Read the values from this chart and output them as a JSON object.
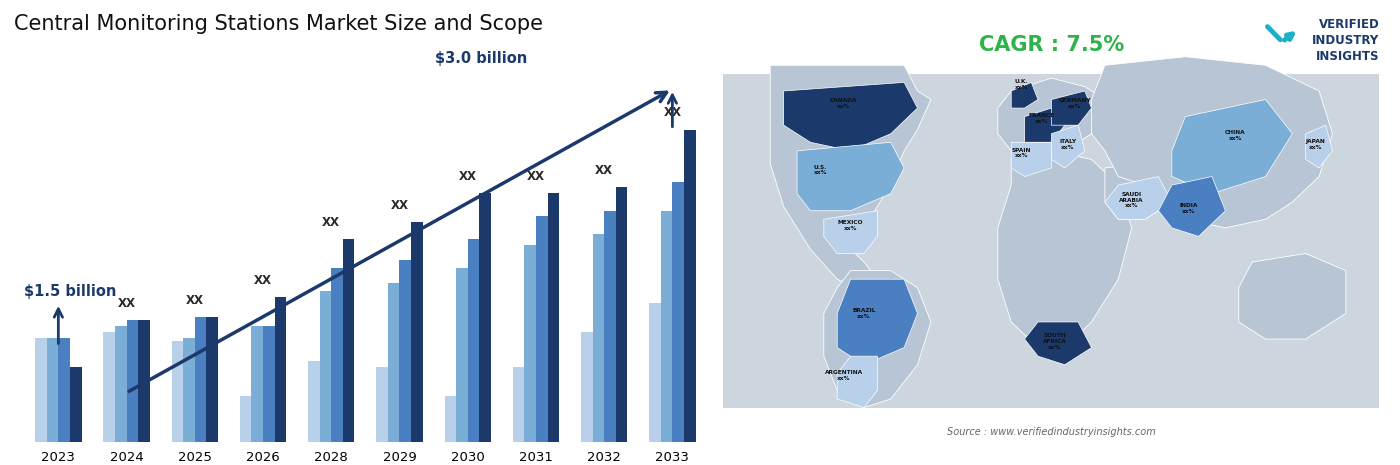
{
  "title": "Central Monitoring Stations Market Size and Scope",
  "years": [
    2023,
    2024,
    2025,
    2026,
    2028,
    2029,
    2030,
    2031,
    2032,
    2033
  ],
  "bar_data": {
    "series1": [
      0.36,
      0.38,
      0.35,
      0.16,
      0.28,
      0.26,
      0.16,
      0.26,
      0.38,
      0.48
    ],
    "series2": [
      0.36,
      0.4,
      0.36,
      0.4,
      0.52,
      0.55,
      0.6,
      0.68,
      0.72,
      0.8
    ],
    "series3": [
      0.36,
      0.42,
      0.43,
      0.4,
      0.6,
      0.63,
      0.7,
      0.78,
      0.8,
      0.9
    ],
    "series4": [
      0.26,
      0.42,
      0.43,
      0.5,
      0.7,
      0.76,
      0.86,
      0.86,
      0.88,
      1.08
    ]
  },
  "colors": {
    "series1": "#b8d0ea",
    "series2": "#7aaed6",
    "series3": "#4a7fc1",
    "series4": "#1b3a6b"
  },
  "start_label": "$1.5 billion",
  "end_label": "$3.0 billion",
  "cagr_text": "CAGR : 7.5%",
  "cagr_color": "#2db34a",
  "source_text": "Source : www.verifiedindustryinsights.com",
  "arrow_color": "#1b3a6b",
  "xx_label": "XX",
  "background_color": "#ffffff",
  "title_fontsize": 15,
  "map_bg_color": "#cdd5e0",
  "map_land_color": "#b8c4d4",
  "country_colors": {
    "CANADA": "#1b3a6b",
    "U.S.": "#7aaed6",
    "MEXICO": "#b8d0ea",
    "BRAZIL": "#4a7fc1",
    "ARGENTINA": "#b8d0ea",
    "U.K.": "#1b3a6b",
    "FRANCE": "#1b3a6b",
    "SPAIN": "#b8d0ea",
    "GERMANY": "#1b3a6b",
    "ITALY": "#b8d0ea",
    "SAUDI_ARABIA": "#b8d0ea",
    "SOUTH_AFRICA": "#1b3a6b",
    "CHINA": "#7aaed6",
    "JAPAN": "#b8d0ea",
    "INDIA": "#4a7fc1"
  }
}
